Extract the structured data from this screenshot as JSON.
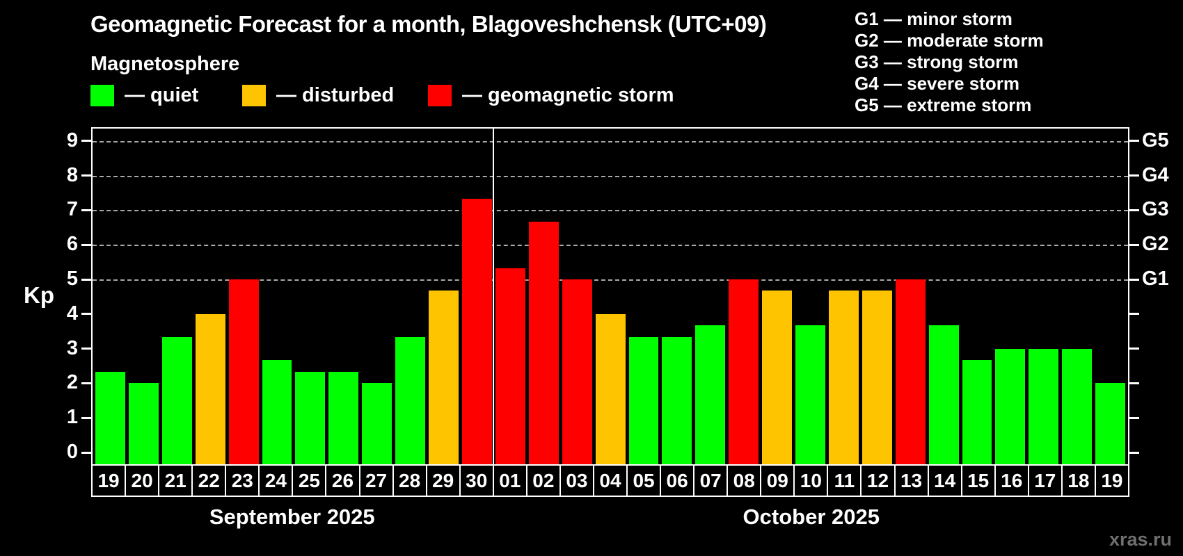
{
  "title": "Geomagnetic Forecast for a month, Blagoveshchensk (UTC+09)",
  "subtitle": "Magnetosphere",
  "legend": [
    {
      "name": "quiet",
      "label": "— quiet",
      "color": "#00ff00"
    },
    {
      "name": "disturbed",
      "label": "— disturbed",
      "color": "#ffc400"
    },
    {
      "name": "storm",
      "label": "— geomagnetic storm",
      "color": "#ff0000"
    }
  ],
  "storm_scale_legend": [
    "G1 — minor storm",
    "G2 — moderate storm",
    "G3 — strong storm",
    "G4 — severe storm",
    "G5 — extreme storm"
  ],
  "watermark": "xras.ru",
  "chart_data": {
    "type": "bar",
    "ylabel": "Kp",
    "ylim": [
      0,
      9.4
    ],
    "yticks": [
      0,
      1,
      2,
      3,
      4,
      5,
      6,
      7,
      8,
      9
    ],
    "grid_levels": [
      5,
      6,
      7,
      8,
      9
    ],
    "grid_on": true,
    "legend_position": "top-left",
    "right_axis": [
      {
        "kp": 5,
        "label": "G1"
      },
      {
        "kp": 6,
        "label": "G2"
      },
      {
        "kp": 7,
        "label": "G3"
      },
      {
        "kp": 8,
        "label": "G4"
      },
      {
        "kp": 9,
        "label": "G5"
      }
    ],
    "months": [
      {
        "label": "September 2025",
        "count": 12
      },
      {
        "label": "October 2025",
        "count": 19
      }
    ],
    "status_colors": {
      "quiet": "#00ff00",
      "disturbed": "#ffc400",
      "storm": "#ff0000"
    },
    "bars": [
      {
        "day": "19",
        "kp": 2.33,
        "status": "quiet"
      },
      {
        "day": "20",
        "kp": 2.0,
        "status": "quiet"
      },
      {
        "day": "21",
        "kp": 3.33,
        "status": "quiet"
      },
      {
        "day": "22",
        "kp": 4.0,
        "status": "disturbed"
      },
      {
        "day": "23",
        "kp": 5.0,
        "status": "storm"
      },
      {
        "day": "24",
        "kp": 2.67,
        "status": "quiet"
      },
      {
        "day": "25",
        "kp": 2.33,
        "status": "quiet"
      },
      {
        "day": "26",
        "kp": 2.33,
        "status": "quiet"
      },
      {
        "day": "27",
        "kp": 2.0,
        "status": "quiet"
      },
      {
        "day": "28",
        "kp": 3.33,
        "status": "quiet"
      },
      {
        "day": "29",
        "kp": 4.67,
        "status": "disturbed"
      },
      {
        "day": "30",
        "kp": 7.33,
        "status": "storm"
      },
      {
        "day": "01",
        "kp": 5.33,
        "status": "storm"
      },
      {
        "day": "02",
        "kp": 6.67,
        "status": "storm"
      },
      {
        "day": "03",
        "kp": 5.0,
        "status": "storm"
      },
      {
        "day": "04",
        "kp": 4.0,
        "status": "disturbed"
      },
      {
        "day": "05",
        "kp": 3.33,
        "status": "quiet"
      },
      {
        "day": "06",
        "kp": 3.33,
        "status": "quiet"
      },
      {
        "day": "07",
        "kp": 3.67,
        "status": "quiet"
      },
      {
        "day": "08",
        "kp": 5.0,
        "status": "storm"
      },
      {
        "day": "09",
        "kp": 4.67,
        "status": "disturbed"
      },
      {
        "day": "10",
        "kp": 3.67,
        "status": "quiet"
      },
      {
        "day": "11",
        "kp": 4.67,
        "status": "disturbed"
      },
      {
        "day": "12",
        "kp": 4.67,
        "status": "disturbed"
      },
      {
        "day": "13",
        "kp": 5.0,
        "status": "storm"
      },
      {
        "day": "14",
        "kp": 3.67,
        "status": "quiet"
      },
      {
        "day": "15",
        "kp": 2.67,
        "status": "quiet"
      },
      {
        "day": "16",
        "kp": 3.0,
        "status": "quiet"
      },
      {
        "day": "17",
        "kp": 3.0,
        "status": "quiet"
      },
      {
        "day": "18",
        "kp": 3.0,
        "status": "quiet"
      },
      {
        "day": "19",
        "kp": 2.0,
        "status": "quiet"
      }
    ]
  }
}
